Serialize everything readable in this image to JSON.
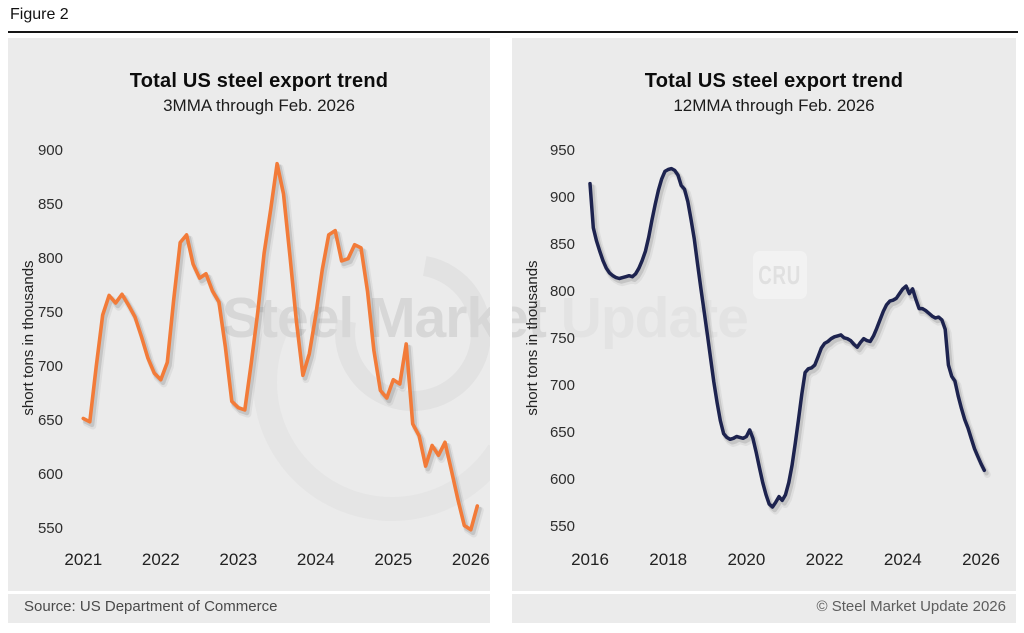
{
  "figure_label": "Figure 2",
  "source": "Source: US Department of Commerce",
  "copyright": "© Steel Market Update 2026",
  "watermark": {
    "part1": "Steel Market",
    "part2": " Update",
    "cru": "CRU"
  },
  "chart_data": [
    {
      "type": "line",
      "title": "Total US steel export trend",
      "subtitle": "3MMA through Feb. 2026",
      "ylabel": "short tons in thousands",
      "color": "#f27b39",
      "x_ticks": [
        2021,
        2022,
        2023,
        2024,
        2025,
        2026
      ],
      "y_ticks": [
        900,
        850,
        800,
        750,
        700,
        650,
        600,
        550
      ],
      "ylim": [
        550,
        900
      ],
      "xlim": [
        2020.9,
        2026.25
      ],
      "grid": false,
      "legend": "none",
      "series": [
        {
          "name": "3MMA total US steel exports",
          "start_year": 2021.0,
          "frequency": "monthly",
          "values": [
            652,
            649,
            700,
            748,
            766,
            759,
            767,
            757,
            746,
            728,
            708,
            694,
            688,
            704,
            762,
            815,
            822,
            795,
            782,
            786,
            770,
            760,
            718,
            668,
            662,
            660,
            703,
            750,
            805,
            845,
            888,
            860,
            802,
            742,
            692,
            712,
            748,
            790,
            822,
            826,
            798,
            800,
            813,
            810,
            770,
            715,
            678,
            671,
            688,
            684,
            721,
            647,
            636,
            608,
            627,
            618,
            630,
            604,
            577,
            553,
            549,
            571
          ]
        }
      ]
    },
    {
      "type": "line",
      "title": "Total US steel export trend",
      "subtitle": "12MMA through Feb. 2026",
      "ylabel": "short tons in thousands",
      "color": "#1d234f",
      "x_ticks": [
        2016,
        2018,
        2020,
        2022,
        2024,
        2026
      ],
      "y_ticks": [
        950,
        900,
        850,
        800,
        750,
        700,
        650,
        600,
        550
      ],
      "ylim": [
        550,
        950
      ],
      "xlim": [
        2015.95,
        2026.3
      ],
      "grid": false,
      "legend": "none",
      "series": [
        {
          "name": "12MMA total US steel exports",
          "start_year": 2016.0,
          "frequency": "monthly",
          "values": [
            915,
            868,
            854,
            843,
            833,
            825,
            820,
            817,
            815,
            814,
            815,
            816,
            817,
            816,
            819,
            825,
            833,
            843,
            858,
            876,
            893,
            908,
            920,
            928,
            930,
            931,
            929,
            924,
            913,
            909,
            896,
            877,
            856,
            830,
            804,
            780,
            755,
            729,
            704,
            682,
            663,
            649,
            645,
            643,
            644,
            646,
            645,
            644,
            646,
            653,
            644,
            629,
            613,
            597,
            584,
            574,
            571,
            576,
            582,
            578,
            584,
            597,
            615,
            639,
            664,
            691,
            714,
            718,
            719,
            722,
            731,
            740,
            745,
            747,
            750,
            752,
            753,
            754,
            751,
            750,
            748,
            744,
            741,
            746,
            750,
            748,
            747,
            753,
            761,
            770,
            779,
            786,
            790,
            791,
            793,
            798,
            803,
            806,
            798,
            803,
            792,
            782,
            782,
            780,
            777,
            774,
            772,
            773,
            770,
            760,
            722,
            710,
            705,
            689,
            676,
            664,
            655,
            644,
            633,
            625,
            617,
            610
          ]
        }
      ]
    }
  ]
}
